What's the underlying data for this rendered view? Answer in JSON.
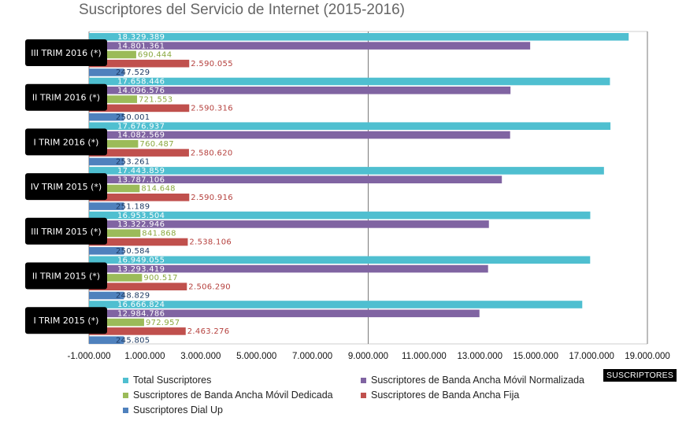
{
  "chart_data": {
    "type": "bar",
    "orientation": "horizontal",
    "title": "Suscriptores del Servicio de Internet (2015-2016)",
    "xlabel": "SUSCRIPTORES",
    "xlim": [
      -1000000,
      19000000
    ],
    "x_ticks": [
      "-1.000.000",
      "1.000.000",
      "3.000.000",
      "5.000.000",
      "7.000.000",
      "9.000.000",
      "11.000.000",
      "13.000.000",
      "15.000.000",
      "17.000.000",
      "19.000.000"
    ],
    "tick_values": [
      -1000000,
      1000000,
      3000000,
      5000000,
      7000000,
      9000000,
      11000000,
      13000000,
      15000000,
      17000000,
      19000000
    ],
    "grid": "vertical gridlines at every 10.000.000",
    "legend_position": "bottom",
    "categories": [
      "III TRIM 2016 (*)",
      "II TRIM 2016 (*)",
      "I TRIM 2016 (*)",
      "IV TRIM 2015 (*)",
      "III TRIM 2015 (*)",
      "II TRIM 2015 (*)",
      "I TRIM 2015 (*)"
    ],
    "series": [
      {
        "name": "Total Suscriptores",
        "color": "#4fbfd0",
        "label_color": "#ffffff",
        "values": [
          18329389,
          17658446,
          17676937,
          17443859,
          16953504,
          16949055,
          16666824
        ],
        "labels": [
          "18.329.389",
          "17.658.446",
          "17.676.937",
          "17.443.859",
          "16.953.504",
          "16.949.055",
          "16.666.824"
        ]
      },
      {
        "name": "Suscriptores de Banda Ancha Móvil Normalizada",
        "color": "#8064a2",
        "label_color": "#ffffff",
        "values": [
          14801361,
          14096576,
          14082569,
          13787106,
          13322946,
          13293419,
          12984786
        ],
        "labels": [
          "14.801.361",
          "14.096.576",
          "14.082.569",
          "13.787.106",
          "13.322.946",
          "13.293.419",
          "12.984.786"
        ]
      },
      {
        "name": "Suscriptores de Banda Ancha Móvil Dedicada",
        "color": "#9bbb59",
        "label_color": "#8aa83f",
        "values": [
          690444,
          721553,
          760487,
          814648,
          841868,
          900517,
          972957
        ],
        "labels": [
          "690.444",
          "721.553",
          "760.487",
          "814.648",
          "841.868",
          "900.517",
          "972.957"
        ]
      },
      {
        "name": "Suscriptores de Banda Ancha Fija",
        "color": "#c0504d",
        "label_color": "#b5403d",
        "values": [
          2590055,
          2590316,
          2580620,
          2590916,
          2538106,
          2506290,
          2463276
        ],
        "labels": [
          "2.590.055",
          "2.590.316",
          "2.580.620",
          "2.590.916",
          "2.538.106",
          "2.506.290",
          "2.463.276"
        ]
      },
      {
        "name": "Suscriptores Dial Up",
        "color": "#4f81bd",
        "label_color": "#1f3b63",
        "values": [
          247529,
          250001,
          253261,
          251189,
          250584,
          248829,
          245805
        ],
        "labels": [
          "247.529",
          "250.001",
          "253.261",
          "251.189",
          "250.584",
          "248.829",
          "245.805"
        ]
      }
    ]
  }
}
